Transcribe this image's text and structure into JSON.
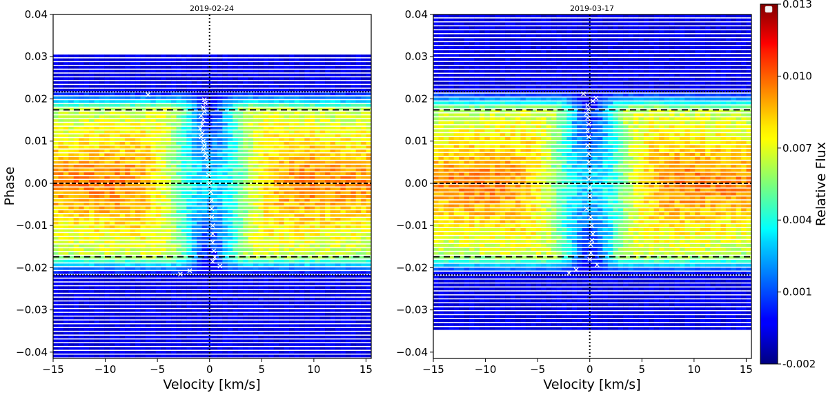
{
  "chart_data": {
    "type": "heatmap",
    "colormap": "jet",
    "colorbar": {
      "label": "Relative Flux",
      "range": [
        -0.002,
        0.013
      ],
      "ticks": [
        -0.002,
        0.001,
        0.004,
        0.007,
        0.01,
        0.013
      ],
      "tick_labels": [
        "-0.002",
        "0.001",
        "0.004",
        "0.007",
        "0.010",
        "0.013"
      ]
    },
    "panels": [
      {
        "title": "2019-02-24",
        "xlabel": "Velocity [km/s]",
        "ylabel": "Phase",
        "xlim": [
          -15,
          15.5
        ],
        "ylim": [
          -0.0415,
          0.04
        ],
        "xticks": [
          -15,
          -10,
          -5,
          0,
          5,
          10,
          15
        ],
        "xtick_labels": [
          "−15",
          "−10",
          "−5",
          "0",
          "5",
          "10",
          "15"
        ],
        "yticks": [
          -0.04,
          -0.03,
          -0.02,
          -0.01,
          0.0,
          0.01,
          0.02,
          0.03,
          0.04
        ],
        "ytick_labels": [
          "−0.04",
          "−0.03",
          "−0.02",
          "−0.01",
          "0.00",
          "0.01",
          "0.02",
          "0.03",
          "0.04"
        ],
        "phase_coverage": [
          -0.0415,
          0.0305
        ],
        "transit_contacts_outer": [
          -0.0217,
          0.0217
        ],
        "transit_contacts_inner": [
          -0.0174,
          0.0174
        ],
        "mid_transit_phase": 0.0,
        "rv_reference_line": 0.0,
        "local_rv_track_phase_velocity": [
          [
            0.021,
            -5.9
          ],
          [
            0.0198,
            -0.5
          ],
          [
            0.019,
            -0.4
          ],
          [
            0.018,
            -0.6
          ],
          [
            0.017,
            -0.5
          ],
          [
            0.016,
            -0.8
          ],
          [
            0.015,
            -0.6
          ],
          [
            0.014,
            -0.7
          ],
          [
            0.013,
            -0.9
          ],
          [
            0.012,
            -0.7
          ],
          [
            0.011,
            -0.8
          ],
          [
            0.01,
            -0.6
          ],
          [
            0.009,
            -0.5
          ],
          [
            0.008,
            -0.6
          ],
          [
            0.007,
            -0.4
          ],
          [
            0.006,
            -0.3
          ],
          [
            0.004,
            -0.2
          ],
          [
            0.002,
            -0.1
          ],
          [
            0.0,
            0.0
          ],
          [
            -0.002,
            0.1
          ],
          [
            -0.004,
            0.2
          ],
          [
            -0.006,
            0.2
          ],
          [
            -0.008,
            0.2
          ],
          [
            -0.01,
            0.3
          ],
          [
            -0.012,
            0.3
          ],
          [
            -0.014,
            0.3
          ],
          [
            -0.016,
            0.4
          ],
          [
            -0.0175,
            0.5
          ],
          [
            -0.0185,
            0.3
          ],
          [
            -0.0196,
            1.0
          ],
          [
            -0.0207,
            -1.9
          ],
          [
            -0.0215,
            -2.8
          ]
        ]
      },
      {
        "title": "2019-03-17",
        "xlabel": "Velocity [km/s]",
        "ylabel": "",
        "xlim": [
          -15,
          15.5
        ],
        "ylim": [
          -0.0415,
          0.04
        ],
        "xticks": [
          -15,
          -10,
          -5,
          0,
          5,
          10,
          15
        ],
        "xtick_labels": [
          "−15",
          "−10",
          "−5",
          "0",
          "5",
          "10",
          "15"
        ],
        "yticks": [
          -0.04,
          -0.03,
          -0.02,
          -0.01,
          0.0,
          0.01,
          0.02,
          0.03,
          0.04
        ],
        "ytick_labels": [
          "−0.04",
          "−0.03",
          "−0.02",
          "−0.01",
          "0.00",
          "0.01",
          "0.02",
          "0.03",
          "0.04"
        ],
        "phase_coverage": [
          -0.035,
          0.04
        ],
        "transit_contacts_outer": [
          -0.0217,
          0.0217
        ],
        "transit_contacts_inner": [
          -0.0174,
          0.0174
        ],
        "mid_transit_phase": 0.0,
        "rv_reference_line": 0.0,
        "local_rv_track_phase_velocity": [
          [
            0.0212,
            -0.6
          ],
          [
            0.0202,
            0.6
          ],
          [
            0.0195,
            0.3
          ],
          [
            0.0185,
            -0.2
          ],
          [
            0.0175,
            -0.1
          ],
          [
            0.0165,
            -0.3
          ],
          [
            0.0155,
            -0.2
          ],
          [
            0.014,
            -0.1
          ],
          [
            0.0125,
            -0.2
          ],
          [
            0.011,
            -0.1
          ],
          [
            0.009,
            -0.2
          ],
          [
            0.007,
            -0.1
          ],
          [
            0.005,
            -0.1
          ],
          [
            0.003,
            0.0
          ],
          [
            0.001,
            -0.1
          ],
          [
            -0.001,
            0.0
          ],
          [
            -0.003,
            0.0
          ],
          [
            -0.006,
            -0.3
          ],
          [
            -0.008,
            0.1
          ],
          [
            -0.01,
            0.2
          ],
          [
            -0.012,
            0.3
          ],
          [
            -0.0135,
            0.2
          ],
          [
            -0.0145,
            0.1
          ],
          [
            -0.0165,
            0.1
          ],
          [
            -0.018,
            0.0
          ],
          [
            -0.0193,
            0.7
          ],
          [
            -0.0205,
            -1.3
          ],
          [
            -0.0213,
            -2.0
          ]
        ]
      }
    ]
  }
}
